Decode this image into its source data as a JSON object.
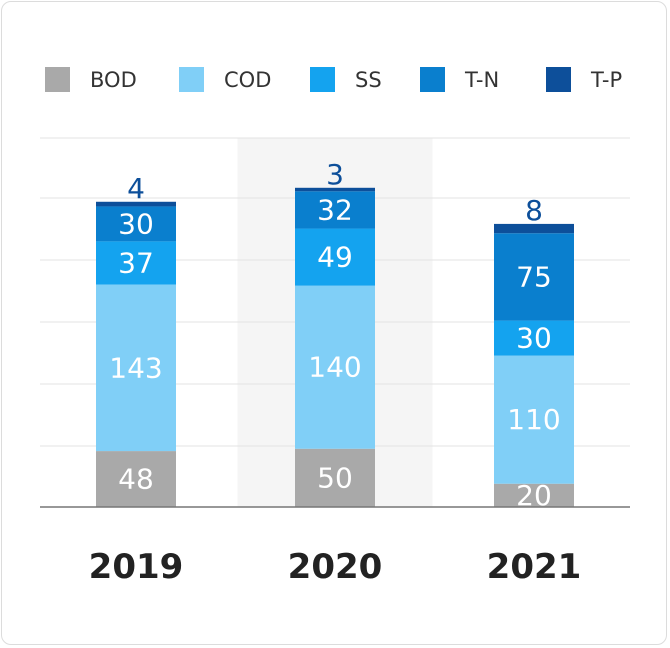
{
  "chart_data": {
    "type": "bar",
    "stacked": true,
    "categories": [
      "2019",
      "2020",
      "2021"
    ],
    "series": [
      {
        "name": "BOD",
        "color": "#a9a9a9",
        "values": [
          48,
          50,
          20
        ]
      },
      {
        "name": "COD",
        "color": "#80cff7",
        "values": [
          143,
          140,
          110
        ]
      },
      {
        "name": "SS",
        "color": "#14a3ef",
        "values": [
          37,
          49,
          30
        ]
      },
      {
        "name": "T-N",
        "color": "#0a7fce",
        "values": [
          30,
          32,
          75
        ]
      },
      {
        "name": "T-P",
        "color": "#0d4f9a",
        "values": [
          4,
          3,
          8
        ]
      }
    ],
    "highlight_category": "2020",
    "grid": true,
    "legend_position": "top"
  }
}
